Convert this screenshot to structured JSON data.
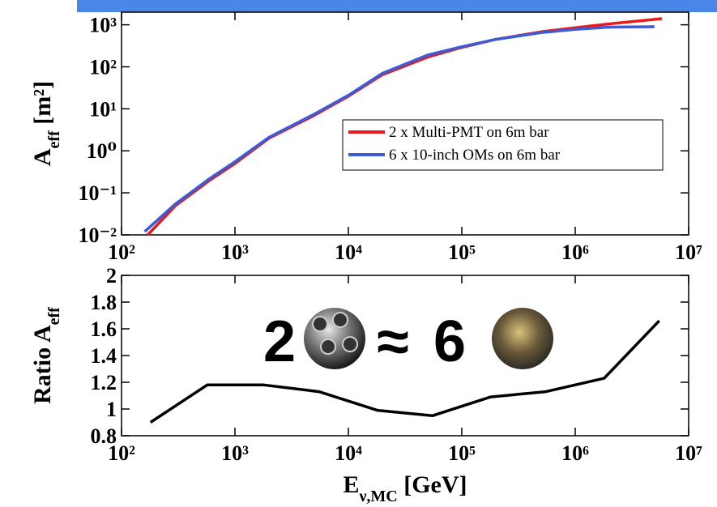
{
  "chart_data": [
    {
      "type": "line",
      "y_label": {
        "base": "A",
        "sub": "eff",
        "rest": " [m²]"
      },
      "log_x": true,
      "log_y": true,
      "xlim": [
        100,
        10000000
      ],
      "xticks": [
        {
          "value": 100,
          "label": "10²"
        },
        {
          "value": 1000,
          "label": "10³"
        },
        {
          "value": 10000,
          "label": "10⁴"
        },
        {
          "value": 100000,
          "label": "10⁵"
        },
        {
          "value": 1000000,
          "label": "10⁶"
        },
        {
          "value": 10000000,
          "label": "10⁷"
        }
      ],
      "ylim": [
        0.01,
        2000
      ],
      "yticks": [
        {
          "value": 0.01,
          "label": "10⁻²"
        },
        {
          "value": 0.1,
          "label": "10⁻¹"
        },
        {
          "value": 1,
          "label": "10⁰"
        },
        {
          "value": 10,
          "label": "10¹"
        },
        {
          "value": 100,
          "label": "10²"
        },
        {
          "value": 1000,
          "label": "10³"
        }
      ],
      "legend": "right",
      "series": [
        {
          "name": "2 x Multi-PMT on 6m bar",
          "color": "#e8191b",
          "x": [
            170,
            300,
            600,
            1000,
            2000,
            5000,
            10000,
            20000,
            50000,
            100000,
            200000,
            500000,
            1000000,
            2000000,
            5800000
          ],
          "values": [
            0.01,
            0.05,
            0.2,
            0.5,
            2,
            7,
            20,
            65,
            170,
            290,
            450,
            680,
            850,
            1050,
            1400
          ]
        },
        {
          "name": "6 x 10-inch OMs on 6m bar",
          "color": "#3e5bd6",
          "x": [
            160,
            300,
            600,
            1000,
            2000,
            5000,
            10000,
            20000,
            50000,
            100000,
            200000,
            500000,
            1000000,
            2000000,
            5000000
          ],
          "values": [
            0.012,
            0.055,
            0.22,
            0.55,
            2.1,
            7.5,
            21,
            70,
            190,
            300,
            450,
            650,
            780,
            880,
            900
          ]
        }
      ]
    },
    {
      "type": "line",
      "y_label": {
        "base": "Ratio A",
        "sub": "eff"
      },
      "x_label": {
        "base": "E",
        "sub": "ν,MC",
        "rest": " [GeV]"
      },
      "log_x": true,
      "xlim": [
        100,
        10000000
      ],
      "xticks": [
        {
          "value": 100,
          "label": "10²"
        },
        {
          "value": 1000,
          "label": "10³"
        },
        {
          "value": 10000,
          "label": "10⁴"
        },
        {
          "value": 100000,
          "label": "10⁵"
        },
        {
          "value": 1000000,
          "label": "10⁶"
        },
        {
          "value": 10000000,
          "label": "10⁷"
        }
      ],
      "ylim": [
        0.8,
        2
      ],
      "yticks": [
        0.8,
        1,
        1.2,
        1.4,
        1.6,
        1.8,
        2
      ],
      "annotation": {
        "left": "2",
        "mid": "≈",
        "right": "6"
      },
      "series": [
        {
          "color": "#000000",
          "x": [
            180,
            570,
            1800,
            5500,
            18000,
            55000,
            180000,
            550000,
            1800000,
            5500000
          ],
          "values": [
            0.9,
            1.18,
            1.18,
            1.13,
            0.99,
            0.95,
            1.09,
            1.13,
            1.23,
            1.66
          ]
        }
      ]
    }
  ]
}
